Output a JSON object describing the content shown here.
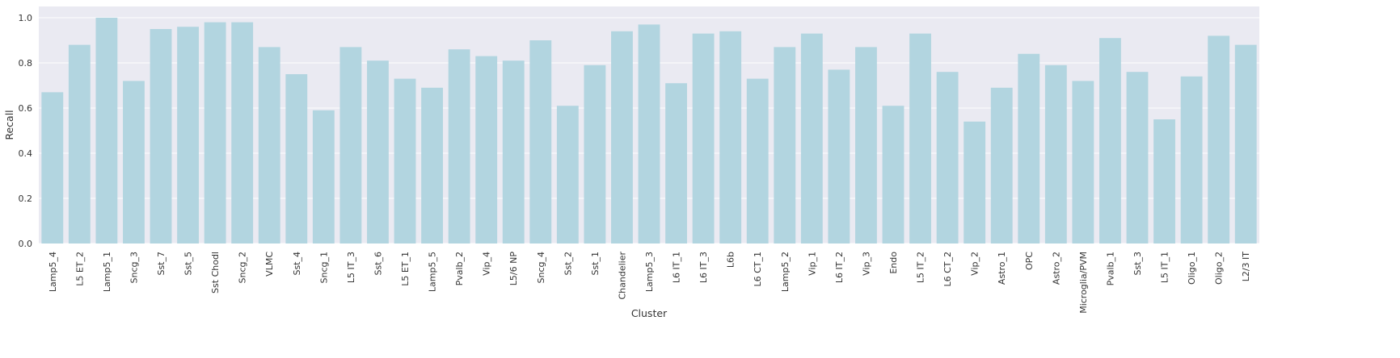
{
  "chart_data": {
    "type": "bar",
    "xlabel": "Cluster",
    "ylabel": "Recall",
    "ylim": [
      0,
      1.05
    ],
    "yticks": [
      "0.0",
      "0.2",
      "0.4",
      "0.6",
      "0.8",
      "1.0"
    ],
    "grid": true,
    "bar_color": "#b2d5e0",
    "background_color": "#eaeaf2",
    "categories": [
      "Lamp5_4",
      "L5 ET_2",
      "Lamp5_1",
      "Sncg_3",
      "Sst_7",
      "Sst_5",
      "Sst Chodl",
      "Sncg_2",
      "VLMC",
      "Sst_4",
      "Sncg_1",
      "L5 IT_3",
      "Sst_6",
      "L5 ET_1",
      "Lamp5_5",
      "Pvalb_2",
      "Vip_4",
      "L5/6 NP",
      "Sncg_4",
      "Sst_2",
      "Sst_1",
      "Chandelier",
      "Lamp5_3",
      "L6 IT_1",
      "L6 IT_3",
      "L6b",
      "L6 CT_1",
      "Lamp5_2",
      "Vip_1",
      "L6 IT_2",
      "Vip_3",
      "Endo",
      "L5 IT_2",
      "L6 CT_2",
      "Vip_2",
      "Astro_1",
      "OPC",
      "Astro_2",
      "Microglia/PVM",
      "Pvalb_1",
      "Sst_3",
      "L5 IT_1",
      "Oligo_1",
      "Oligo_2",
      "L2/3 IT"
    ],
    "values": [
      0.67,
      0.88,
      1.0,
      0.72,
      0.95,
      0.96,
      0.98,
      0.98,
      0.87,
      0.75,
      0.59,
      0.87,
      0.81,
      0.73,
      0.69,
      0.86,
      0.83,
      0.81,
      0.9,
      0.61,
      0.79,
      0.94,
      0.97,
      0.71,
      0.93,
      0.94,
      0.73,
      0.87,
      0.93,
      0.77,
      0.87,
      0.61,
      0.93,
      0.76,
      0.54,
      0.69,
      0.84,
      0.79,
      0.72,
      0.91,
      0.76,
      0.55,
      0.74,
      0.92,
      0.88
    ]
  }
}
